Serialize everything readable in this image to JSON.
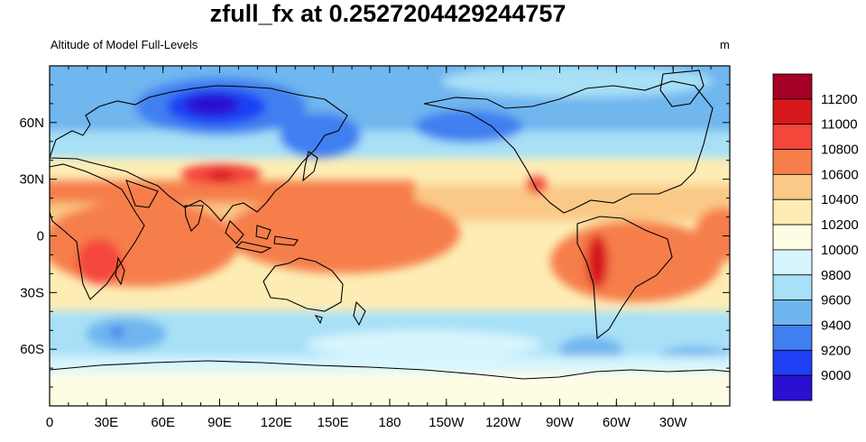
{
  "title": "zfull_fx at 0.2527204429244757",
  "subtitle": "Altitude of Model Full-Levels",
  "units": "m",
  "lat_labels": [
    "60N",
    "30N",
    "0",
    "30S",
    "60S"
  ],
  "lon_labels": [
    "0",
    "30E",
    "60E",
    "90E",
    "120E",
    "150E",
    "180",
    "150W",
    "120W",
    "90W",
    "60W",
    "30W"
  ],
  "colorbar": {
    "labels": [
      "11200",
      "11000",
      "10800",
      "10600",
      "10400",
      "10200",
      "10000",
      "9800",
      "9600",
      "9400",
      "9200",
      "9000"
    ],
    "colors": [
      "#a50026",
      "#d7191c",
      "#f4473c",
      "#f67e4b",
      "#fbc987",
      "#fdedb4",
      "#fefde4",
      "#d7f5fd",
      "#a7e0f7",
      "#6fb6ef",
      "#3f7ff0",
      "#1e3ff5",
      "#2a10d0"
    ]
  }
}
